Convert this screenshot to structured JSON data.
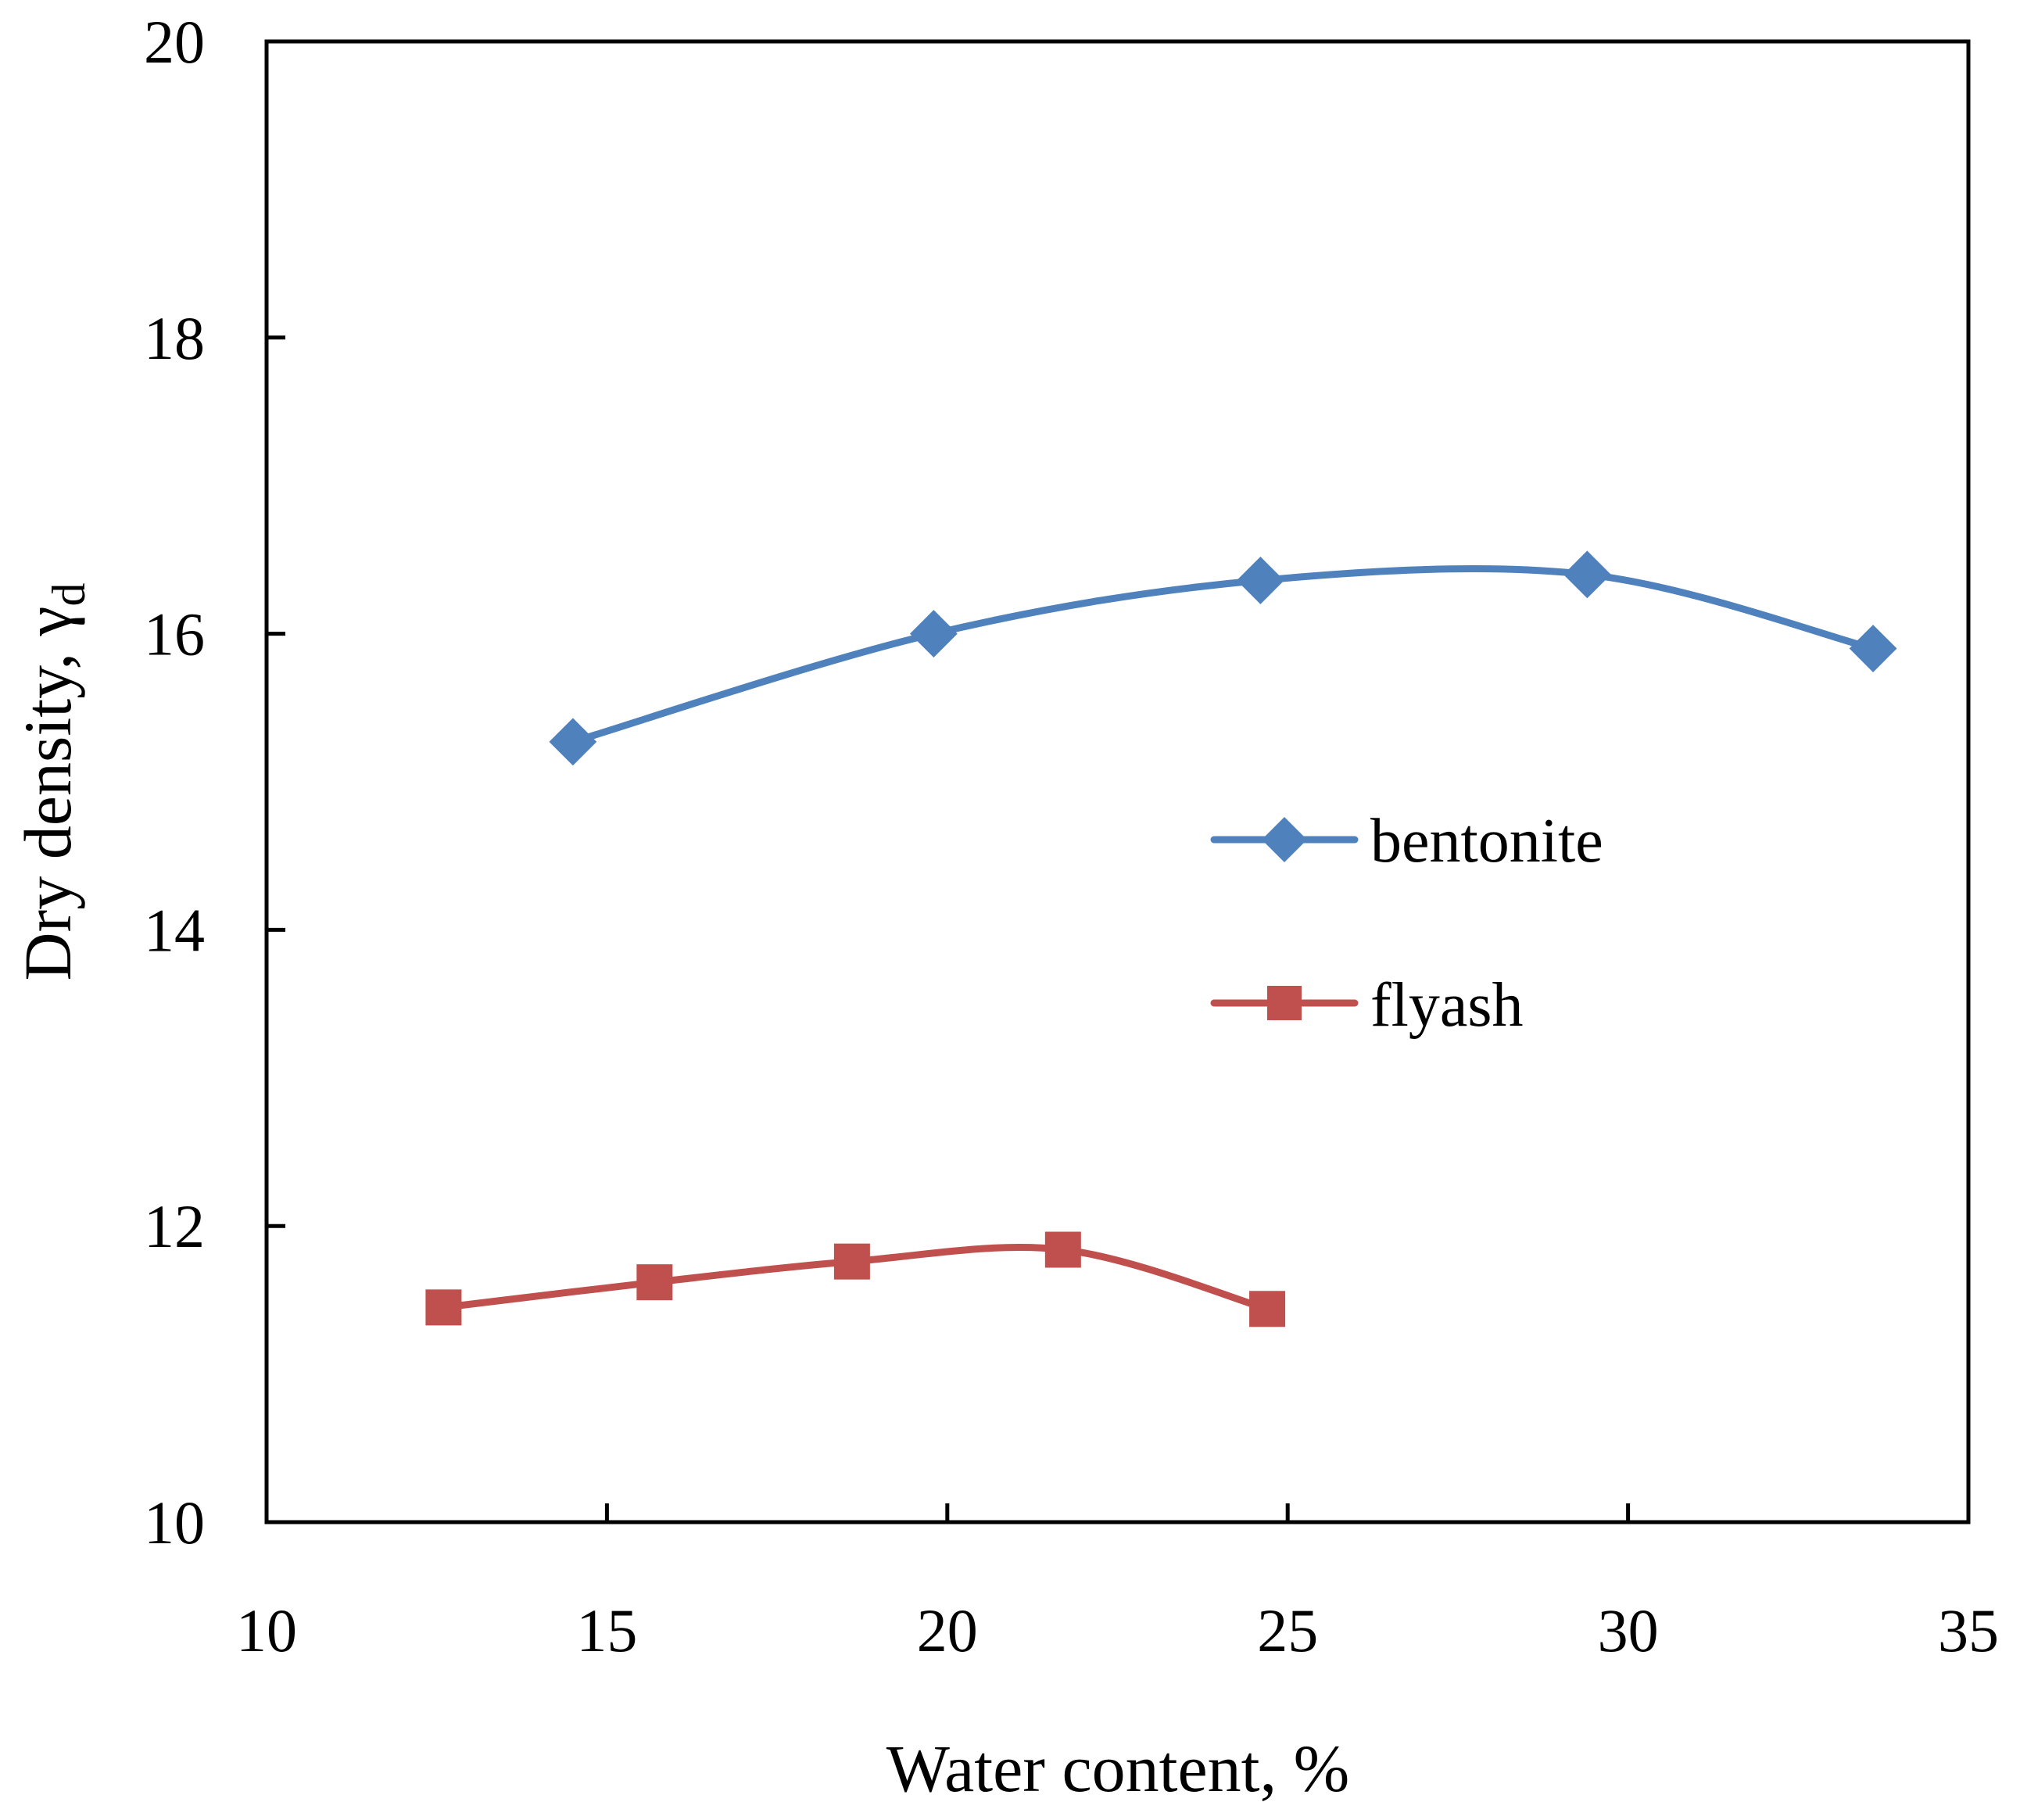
{
  "chart_data": {
    "type": "line",
    "title": "",
    "xlabel": "Water content, %",
    "ylabel": "Dry density, γ",
    "ylabel_subscript": "d",
    "xlim": [
      10,
      35
    ],
    "ylim": [
      10,
      20
    ],
    "xticks": [
      10,
      15,
      20,
      25,
      30,
      35
    ],
    "yticks": [
      10,
      12,
      14,
      16,
      18,
      20
    ],
    "xtick_labels": [
      "10",
      "15",
      "20",
      "25",
      "30",
      "35"
    ],
    "ytick_labels": [
      "10",
      "12",
      "14",
      "16",
      "18",
      "20"
    ],
    "grid": false,
    "legend_position": "center-right",
    "series": [
      {
        "name": "bentonite",
        "marker": "diamond",
        "color": "#4F81BD",
        "x": [
          14.5,
          19.8,
          24.6,
          29.4,
          33.6
        ],
        "y": [
          15.27,
          16.0,
          16.36,
          16.4,
          15.9
        ]
      },
      {
        "name": "flyash",
        "marker": "square",
        "color": "#C0504D",
        "x": [
          12.6,
          15.7,
          18.6,
          21.7,
          24.7
        ],
        "y": [
          11.45,
          11.62,
          11.76,
          11.84,
          11.44
        ]
      }
    ]
  }
}
